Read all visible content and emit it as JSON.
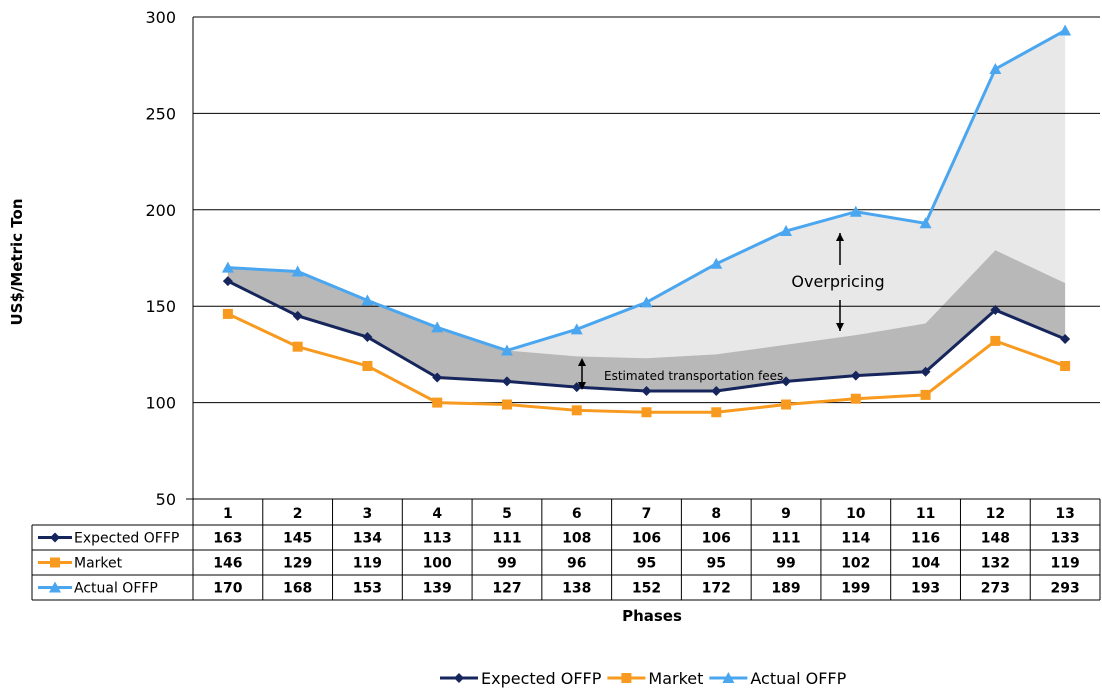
{
  "chart_data": {
    "type": "line",
    "ylabel": "US$/Metric Ton",
    "xlabel": "Phases",
    "ylim": [
      50,
      300
    ],
    "yticks": [
      50,
      100,
      150,
      200,
      250,
      300
    ],
    "grid": true,
    "categories": [
      "1",
      "2",
      "3",
      "4",
      "5",
      "6",
      "7",
      "8",
      "9",
      "10",
      "11",
      "12",
      "13"
    ],
    "series": [
      {
        "name": "Expected OFFP",
        "color": "#16265c",
        "marker": "diamond",
        "values": [
          163,
          145,
          134,
          113,
          111,
          108,
          106,
          106,
          111,
          114,
          116,
          148,
          133
        ]
      },
      {
        "name": "Market",
        "color": "#f79a1f",
        "marker": "square",
        "values": [
          146,
          129,
          119,
          100,
          99,
          96,
          95,
          95,
          99,
          102,
          104,
          132,
          119
        ]
      },
      {
        "name": "Actual OFFP",
        "color": "#4ba6f0",
        "marker": "triangle",
        "values": [
          170,
          168,
          153,
          139,
          127,
          138,
          152,
          172,
          189,
          199,
          193,
          273,
          293
        ]
      }
    ],
    "shaded_band": {
      "color": "#b8b8b8",
      "upper": [
        170,
        168,
        153,
        139,
        127,
        124,
        123,
        125,
        130,
        135,
        141,
        179,
        162
      ]
    },
    "overpricing_area_color": "#e8e8e8",
    "annotations": {
      "overpricing": "Overpricing",
      "transport": "Estimated transportation fees"
    },
    "legend_position": "bottom"
  }
}
